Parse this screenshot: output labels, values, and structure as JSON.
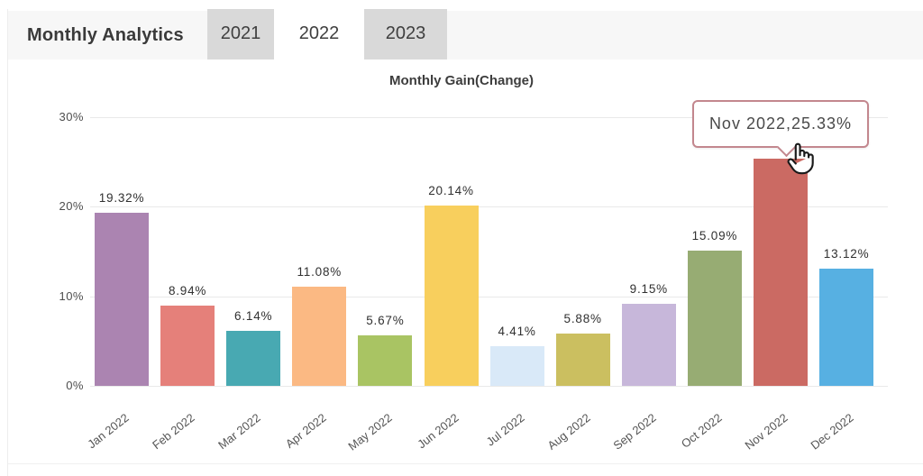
{
  "header": {
    "title": "Monthly Analytics",
    "tabs": [
      {
        "label": "2021",
        "active": false
      },
      {
        "label": "2022",
        "active": true
      },
      {
        "label": "2023",
        "active": false
      }
    ]
  },
  "chart_data": {
    "type": "bar",
    "title": "Monthly Gain(Change)",
    "categories": [
      "Jan 2022",
      "Feb 2022",
      "Mar 2022",
      "Apr 2022",
      "May 2022",
      "Jun 2022",
      "Jul 2022",
      "Aug 2022",
      "Sep 2022",
      "Oct 2022",
      "Nov 2022",
      "Dec 2022"
    ],
    "values": [
      19.32,
      8.94,
      6.14,
      11.08,
      5.67,
      20.14,
      4.41,
      5.88,
      9.15,
      15.09,
      25.33,
      13.12
    ],
    "value_labels": [
      "19.32%",
      "8.94%",
      "6.14%",
      "11.08%",
      "5.67%",
      "20.14%",
      "4.41%",
      "5.88%",
      "9.15%",
      "15.09%",
      "25.33%",
      "13.12%"
    ],
    "bar_colors": [
      "#ab84b1",
      "#e5807a",
      "#48a9b2",
      "#fbb983",
      "#a9c463",
      "#f8cf5d",
      "#d9e9f8",
      "#cbbf60",
      "#c7b7da",
      "#97ac73",
      "#cb6a63",
      "#57b0e2"
    ],
    "xlabel": "",
    "ylabel": "",
    "ylim": [
      0,
      30
    ],
    "ytick_values": [
      0,
      10,
      20,
      30
    ],
    "ytick_labels": [
      "0%",
      "10%",
      "20%",
      "30%"
    ],
    "grid": true,
    "legend": "none",
    "highlight_index": 10
  },
  "tooltip": {
    "label": "Nov 2022,25.33%",
    "border_color": "#c3878e"
  },
  "icons": {
    "hand_pointer_icon": "hand-pointer"
  },
  "colors": {
    "header_band": "#f7f7f7",
    "tab_inactive": "#d9d9d9",
    "tab_active": "#ffffff",
    "gridline": "#e9e9e9",
    "text_primary": "#3a3a3a"
  }
}
